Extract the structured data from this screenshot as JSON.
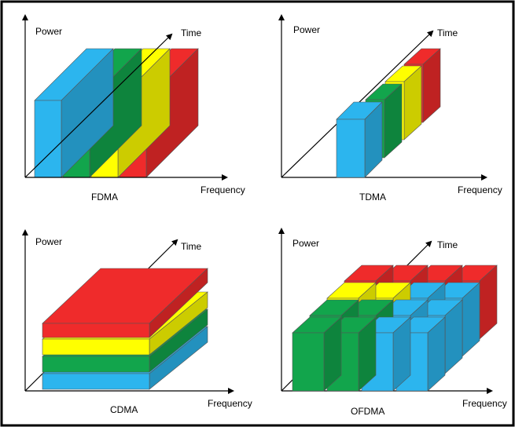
{
  "colors": {
    "blue": "#2cb5ee",
    "green": "#12a54c",
    "yellow": "#ffff00",
    "red": "#ef2b2b",
    "border": "#000000"
  },
  "panels": {
    "fdma": {
      "title": "FDMA",
      "y_axis": "Power",
      "x_axis": "Frequency",
      "z_axis": "Time"
    },
    "tdma": {
      "title": "TDMA",
      "y_axis": "Power",
      "x_axis": "Frequency",
      "z_axis": "Time"
    },
    "cdma": {
      "title": "CDMA",
      "y_axis": "Power",
      "x_axis": "Frequency",
      "z_axis": "Time"
    },
    "ofdma": {
      "title": "OFDMA",
      "y_axis": "Power",
      "x_axis": "Frequency",
      "z_axis": "Time"
    }
  }
}
